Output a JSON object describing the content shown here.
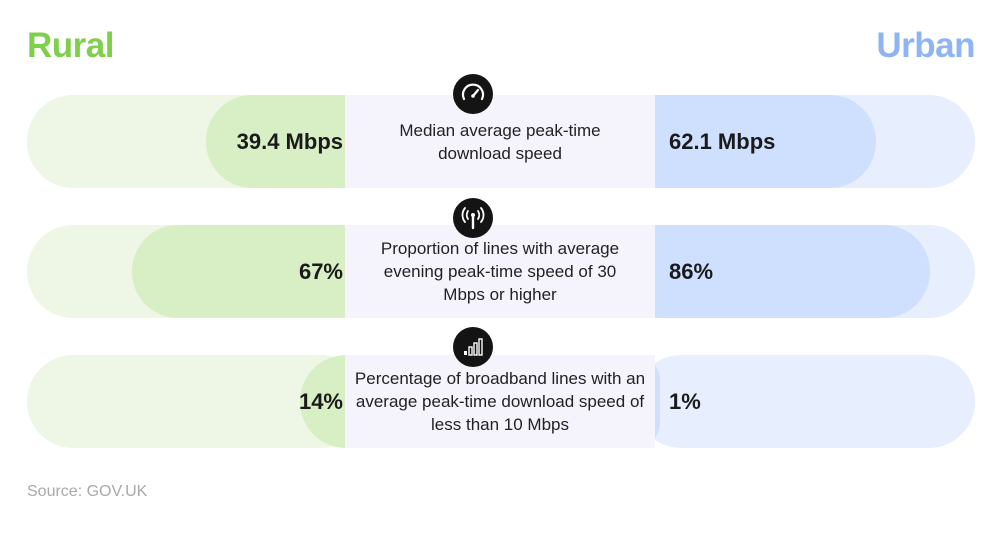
{
  "header": {
    "rural_label": "Rural",
    "urban_label": "Urban"
  },
  "colors": {
    "rural_accent": "#7ed04a",
    "urban_accent": "#8fb4f5",
    "rural_track": "#eef7e6",
    "rural_fill": "#d8efc6",
    "urban_track": "#e7efff",
    "urban_fill": "#cfe0ff",
    "center_band": "#f5f3fc"
  },
  "source": "Source: GOV.UK",
  "chart_data": {
    "type": "bar",
    "title": "",
    "series": [
      {
        "name": "Rural",
        "values": [
          39.4,
          67,
          14
        ]
      },
      {
        "name": "Urban",
        "values": [
          62.1,
          86,
          1
        ]
      }
    ],
    "rows": [
      {
        "icon": "speedometer-icon",
        "label": "Median average peak-time download speed",
        "rural_display": "39.4 Mbps",
        "urban_display": "62.1 Mbps",
        "rural_value": 39.4,
        "urban_value": 62.1,
        "unit": "Mbps"
      },
      {
        "icon": "broadcast-tower-icon",
        "label": "Proportion of lines with average evening peak-time speed of 30 Mbps or higher",
        "rural_display": "67%",
        "urban_display": "86%",
        "rural_value": 67,
        "urban_value": 86,
        "unit": "%"
      },
      {
        "icon": "signal-bars-icon",
        "label": "Percentage of broadband lines with an average peak-time download speed of less than 10 Mbps",
        "rural_display": "14%",
        "urban_display": "1%",
        "rural_value": 14,
        "urban_value": 1,
        "unit": "%"
      }
    ]
  }
}
